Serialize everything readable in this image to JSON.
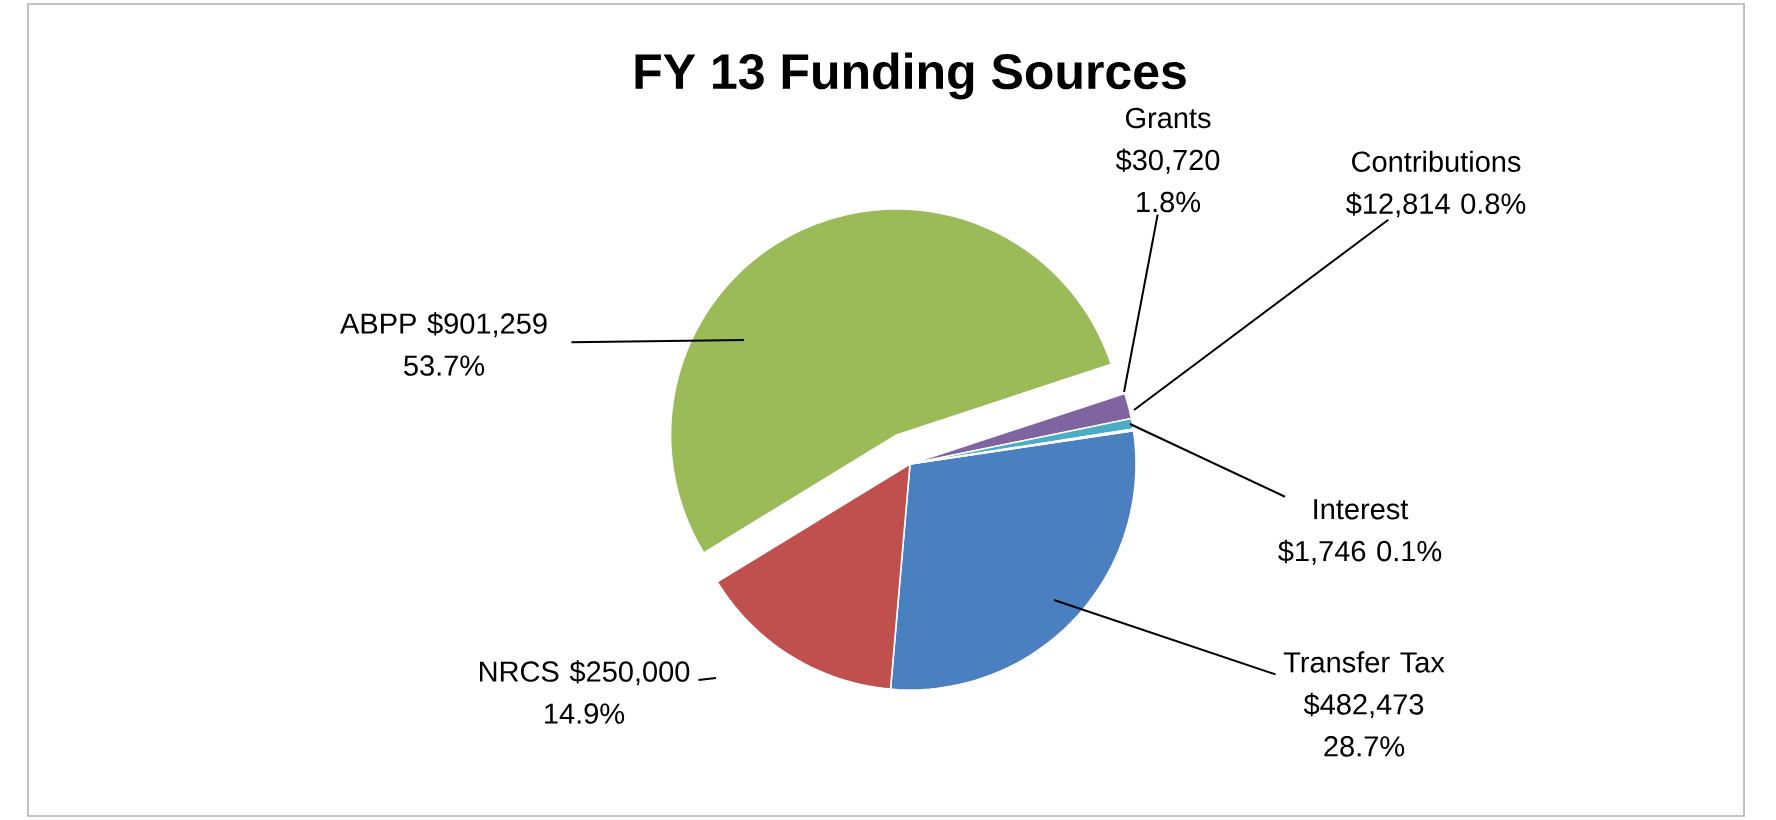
{
  "chart_data": {
    "type": "pie",
    "title": "FY 13 Funding Sources",
    "categories": [
      "Transfer Tax",
      "NRCS",
      "ABPP",
      "Grants",
      "Contributions",
      "Interest"
    ],
    "values": [
      482473,
      250000,
      901259,
      30720,
      12814,
      1746
    ],
    "value_labels": [
      "$482,473 28.7%",
      "$250,000 14.9%",
      "$901,259 53.7%",
      "$30,720 1.8%",
      "$12,814 0.8%",
      "$1,746 0.1%"
    ],
    "colors": [
      "#4a7fc0",
      "#c0504d",
      "#9bbb59",
      "#8064a2",
      "#4bacc6",
      "#f79646"
    ]
  }
}
